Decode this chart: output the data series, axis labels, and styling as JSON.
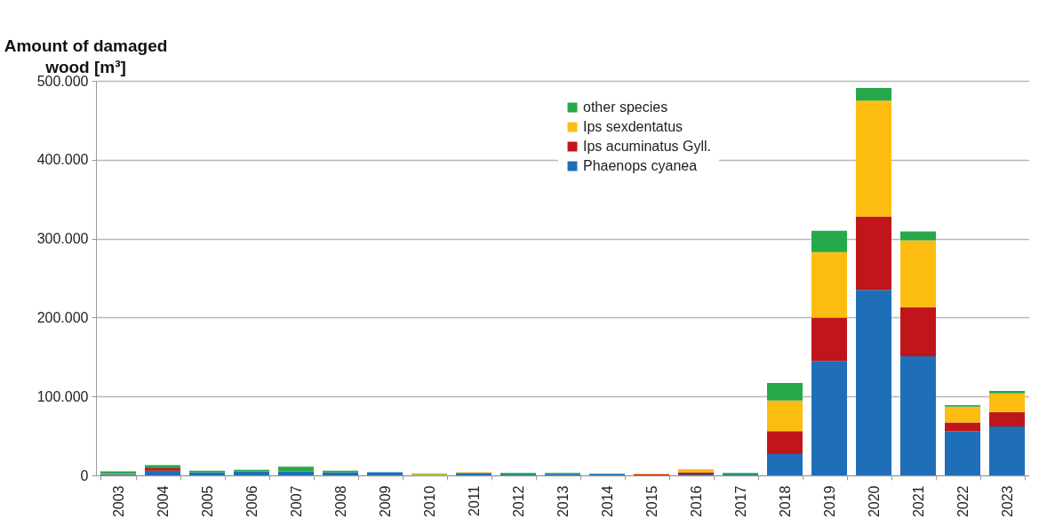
{
  "chart_data": {
    "type": "bar",
    "stacked": true,
    "ylabel": "Amount of damaged wood [m³]",
    "categories": [
      "2003",
      "2004",
      "2005",
      "2006",
      "2007",
      "2008",
      "2009",
      "2010",
      "2011",
      "2012",
      "2013",
      "2014",
      "2015",
      "2016",
      "2017",
      "2018",
      "2019",
      "2020",
      "2021",
      "2022",
      "2023"
    ],
    "series": [
      {
        "name": "Phaenops cyanea",
        "color": "#1f6fb8",
        "values": [
          1000,
          6000,
          4000,
          5000,
          5000,
          4000,
          4000,
          0,
          3000,
          1000,
          2000,
          2000,
          0,
          1000,
          1000,
          27000,
          145000,
          235000,
          151000,
          56000,
          62000
        ]
      },
      {
        "name": "Ips acuminatus Gyll.",
        "color": "#c0161b",
        "values": [
          0,
          3000,
          0,
          0,
          0,
          0,
          0,
          0,
          0,
          0,
          0,
          0,
          1000,
          3000,
          0,
          29000,
          55000,
          93000,
          62000,
          11000,
          18000
        ]
      },
      {
        "name": "Ips sexdentatus",
        "color": "#fdbd10",
        "values": [
          1000,
          0,
          null,
          0,
          0,
          null,
          0,
          1000,
          1000,
          0,
          0,
          0,
          1000,
          4000,
          0,
          39000,
          83000,
          147000,
          85000,
          20000,
          24000
        ]
      },
      {
        "name": "other species",
        "color": "#27a84a",
        "values": [
          3000,
          4000,
          2000,
          2000,
          6000,
          2000,
          0,
          1000,
          0,
          2000,
          1000,
          0,
          0,
          0,
          2000,
          22000,
          27000,
          16000,
          11000,
          2000,
          3000
        ]
      }
    ],
    "ylim": [
      0,
      500000
    ],
    "yticks": [
      0,
      {
        "value": 100000,
        "label": "100.000"
      },
      {
        "value": 200000,
        "label": "200.000"
      },
      {
        "value": 300000,
        "label": "300.000"
      },
      {
        "value": 400000,
        "label": "400.000"
      },
      {
        "value": 500000,
        "label": "500.000"
      }
    ],
    "grid": "y",
    "legend": "top"
  }
}
